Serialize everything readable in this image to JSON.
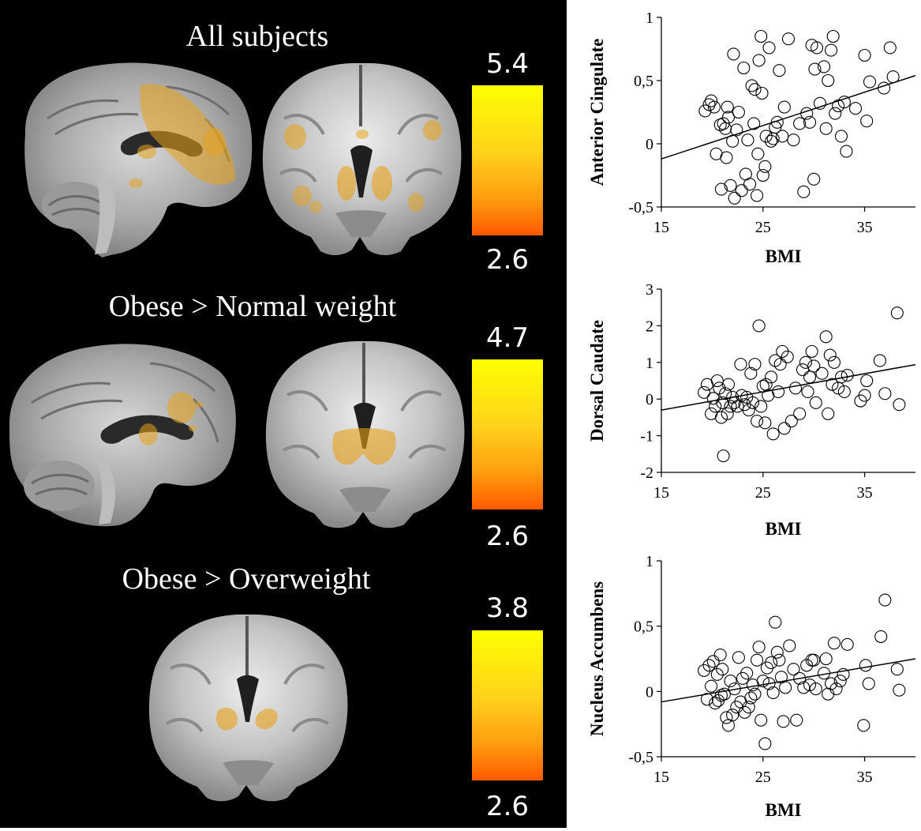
{
  "panels": [
    {
      "title": "All subjects",
      "cbar_max": "5.4",
      "cbar_min": "2.6"
    },
    {
      "title": "Obese > Normal weight",
      "cbar_max": "4.7",
      "cbar_min": "2.6"
    },
    {
      "title": "Obese > Overweight",
      "cbar_max": "3.8",
      "cbar_min": "2.6"
    }
  ],
  "colors": {
    "cbar_top": "#ffff00",
    "cbar_bottom": "#ff5a00",
    "activation": "#e8a21a"
  },
  "chart_data": [
    {
      "type": "scatter",
      "ylabel": "Anterior Cingulate",
      "xlabel": "BMI",
      "xlim": [
        15,
        40
      ],
      "ylim": [
        -0.5,
        1
      ],
      "xticks": [
        "15",
        "25",
        "35"
      ],
      "yticks": [
        "-0,5",
        "0",
        "0,5",
        "1"
      ],
      "yticks_values": [
        -0.5,
        0,
        0.5,
        1
      ],
      "fit_line": [
        [
          15,
          -0.12
        ],
        [
          40,
          0.54
        ]
      ],
      "points": [
        [
          19.3,
          0.26
        ],
        [
          19.7,
          0.31
        ],
        [
          19.9,
          0.34
        ],
        [
          20.2,
          0.29
        ],
        [
          20.4,
          -0.08
        ],
        [
          20.8,
          0.15
        ],
        [
          20.9,
          -0.36
        ],
        [
          21.1,
          0.16
        ],
        [
          21.3,
          0.12
        ],
        [
          21.4,
          -0.11
        ],
        [
          21.5,
          0.29
        ],
        [
          21.6,
          0.21
        ],
        [
          21.8,
          -0.33
        ],
        [
          22.0,
          0.02
        ],
        [
          22.1,
          0.71
        ],
        [
          22.2,
          -0.43
        ],
        [
          22.4,
          0.11
        ],
        [
          22.6,
          0.25
        ],
        [
          22.9,
          -0.37
        ],
        [
          23.1,
          0.6
        ],
        [
          23.3,
          -0.24
        ],
        [
          23.5,
          0.03
        ],
        [
          23.7,
          -0.32
        ],
        [
          23.9,
          0.46
        ],
        [
          24.1,
          0.16
        ],
        [
          24.2,
          0.43
        ],
        [
          24.4,
          -0.41
        ],
        [
          24.5,
          -0.08
        ],
        [
          24.6,
          0.66
        ],
        [
          24.8,
          0.85
        ],
        [
          24.9,
          0.4
        ],
        [
          25.0,
          -0.25
        ],
        [
          25.2,
          -0.18
        ],
        [
          25.3,
          0.06
        ],
        [
          25.6,
          0.76
        ],
        [
          25.8,
          0.02
        ],
        [
          26.0,
          0.04
        ],
        [
          26.2,
          0.13
        ],
        [
          26.4,
          0.17
        ],
        [
          26.6,
          0.58
        ],
        [
          26.9,
          0.06
        ],
        [
          27.1,
          0.29
        ],
        [
          27.5,
          0.83
        ],
        [
          28.0,
          0.03
        ],
        [
          28.6,
          0.16
        ],
        [
          29.0,
          -0.38
        ],
        [
          29.3,
          0.24
        ],
        [
          29.6,
          0.17
        ],
        [
          29.8,
          0.78
        ],
        [
          30.0,
          -0.28
        ],
        [
          30.1,
          0.59
        ],
        [
          30.3,
          0.76
        ],
        [
          30.6,
          0.32
        ],
        [
          31.0,
          0.61
        ],
        [
          31.2,
          0.12
        ],
        [
          31.4,
          0.5
        ],
        [
          31.7,
          0.74
        ],
        [
          31.9,
          0.85
        ],
        [
          32.1,
          0.24
        ],
        [
          32.4,
          0.3
        ],
        [
          32.7,
          0.06
        ],
        [
          33.0,
          0.33
        ],
        [
          33.2,
          -0.06
        ],
        [
          34.1,
          0.28
        ],
        [
          35.0,
          0.7
        ],
        [
          35.2,
          0.18
        ],
        [
          35.5,
          0.49
        ],
        [
          36.9,
          0.44
        ],
        [
          37.5,
          0.76
        ],
        [
          37.8,
          0.53
        ]
      ]
    },
    {
      "type": "scatter",
      "ylabel": "Dorsal Caudate",
      "xlabel": "BMI",
      "xlim": [
        15,
        40
      ],
      "ylim": [
        -2,
        3
      ],
      "xticks": [
        "15",
        "25",
        "35"
      ],
      "yticks": [
        "-2",
        "-1",
        "0",
        "1",
        "2",
        "3"
      ],
      "yticks_values": [
        -2,
        -1,
        0,
        1,
        2,
        3
      ],
      "fit_line": [
        [
          15,
          -0.3
        ],
        [
          40,
          0.94
        ]
      ],
      "points": [
        [
          19.2,
          0.18
        ],
        [
          19.5,
          0.4
        ],
        [
          19.9,
          -0.4
        ],
        [
          20.1,
          0.02
        ],
        [
          20.3,
          -0.2
        ],
        [
          20.5,
          0.5
        ],
        [
          20.7,
          0.3
        ],
        [
          20.9,
          -0.5
        ],
        [
          21.0,
          -0.1
        ],
        [
          21.1,
          -1.55
        ],
        [
          21.3,
          0.15
        ],
        [
          21.5,
          -0.4
        ],
        [
          21.6,
          0.4
        ],
        [
          21.8,
          -0.2
        ],
        [
          22.0,
          0.05
        ],
        [
          22.2,
          -0.1
        ],
        [
          22.5,
          -0.2
        ],
        [
          22.8,
          0.95
        ],
        [
          22.9,
          0.1
        ],
        [
          23.2,
          -0.15
        ],
        [
          23.4,
          0.05
        ],
        [
          23.6,
          -0.3
        ],
        [
          23.8,
          0.7
        ],
        [
          24.0,
          -0.1
        ],
        [
          24.2,
          0.95
        ],
        [
          24.4,
          -0.6
        ],
        [
          24.6,
          2.0
        ],
        [
          24.8,
          -0.2
        ],
        [
          25.0,
          0.35
        ],
        [
          25.2,
          -0.65
        ],
        [
          25.3,
          0.4
        ],
        [
          25.5,
          0.1
        ],
        [
          25.8,
          0.6
        ],
        [
          26.0,
          -0.95
        ],
        [
          26.2,
          1.05
        ],
        [
          26.5,
          0.2
        ],
        [
          26.7,
          0.95
        ],
        [
          26.9,
          1.3
        ],
        [
          27.1,
          -0.8
        ],
        [
          27.4,
          1.15
        ],
        [
          27.8,
          -0.6
        ],
        [
          28.2,
          0.3
        ],
        [
          28.6,
          -0.4
        ],
        [
          28.9,
          0.8
        ],
        [
          29.2,
          1.0
        ],
        [
          29.4,
          0.2
        ],
        [
          29.6,
          0.6
        ],
        [
          29.8,
          1.3
        ],
        [
          30.0,
          0.9
        ],
        [
          30.2,
          -0.1
        ],
        [
          30.8,
          0.7
        ],
        [
          31.2,
          1.7
        ],
        [
          31.4,
          -0.4
        ],
        [
          31.6,
          1.2
        ],
        [
          31.8,
          0.4
        ],
        [
          32.0,
          1.0
        ],
        [
          32.4,
          0.3
        ],
        [
          32.7,
          0.6
        ],
        [
          33.0,
          0.2
        ],
        [
          33.3,
          0.65
        ],
        [
          34.6,
          -0.05
        ],
        [
          35.0,
          0.1
        ],
        [
          35.2,
          0.5
        ],
        [
          36.5,
          1.05
        ],
        [
          37.0,
          0.15
        ],
        [
          38.2,
          2.35
        ],
        [
          38.4,
          -0.15
        ]
      ]
    },
    {
      "type": "scatter",
      "ylabel": "Nucleus Accumbens",
      "xlabel": "BMI",
      "xlim": [
        15,
        40
      ],
      "ylim": [
        -0.5,
        1
      ],
      "xticks": [
        "15",
        "25",
        "35"
      ],
      "yticks": [
        "-0,5",
        "0",
        "0,5",
        "1"
      ],
      "yticks_values": [
        -0.5,
        0,
        0.5,
        1
      ],
      "fit_line": [
        [
          15,
          -0.08
        ],
        [
          40,
          0.25
        ]
      ],
      "points": [
        [
          19.2,
          0.16
        ],
        [
          19.5,
          -0.06
        ],
        [
          19.7,
          0.2
        ],
        [
          19.9,
          0.04
        ],
        [
          20.1,
          0.23
        ],
        [
          20.3,
          -0.09
        ],
        [
          20.5,
          0.13
        ],
        [
          20.6,
          -0.07
        ],
        [
          20.8,
          0.28
        ],
        [
          20.9,
          -0.03
        ],
        [
          21.0,
          0.17
        ],
        [
          21.2,
          -0.02
        ],
        [
          21.4,
          -0.2
        ],
        [
          21.6,
          -0.26
        ],
        [
          21.8,
          0.08
        ],
        [
          22.0,
          -0.18
        ],
        [
          22.2,
          0.02
        ],
        [
          22.4,
          -0.12
        ],
        [
          22.6,
          0.26
        ],
        [
          22.8,
          -0.08
        ],
        [
          23.0,
          0.1
        ],
        [
          23.2,
          -0.16
        ],
        [
          23.4,
          0.14
        ],
        [
          23.6,
          -0.12
        ],
        [
          23.8,
          -0.05
        ],
        [
          24.0,
          0.05
        ],
        [
          24.2,
          -0.02
        ],
        [
          24.4,
          0.24
        ],
        [
          24.6,
          0.34
        ],
        [
          24.8,
          -0.22
        ],
        [
          25.0,
          0.08
        ],
        [
          25.2,
          -0.4
        ],
        [
          25.4,
          0.18
        ],
        [
          25.6,
          0.06
        ],
        [
          25.8,
          0.22
        ],
        [
          26.0,
          -0.01
        ],
        [
          26.2,
          0.53
        ],
        [
          26.4,
          0.3
        ],
        [
          26.6,
          0.24
        ],
        [
          26.8,
          0.11
        ],
        [
          27.0,
          -0.23
        ],
        [
          27.2,
          0.03
        ],
        [
          27.6,
          0.35
        ],
        [
          28.0,
          0.17
        ],
        [
          28.3,
          -0.22
        ],
        [
          28.6,
          0.1
        ],
        [
          29.0,
          0.03
        ],
        [
          29.3,
          0.2
        ],
        [
          29.6,
          0.05
        ],
        [
          29.8,
          0.24
        ],
        [
          30.0,
          0.24
        ],
        [
          30.2,
          0.02
        ],
        [
          31.0,
          0.14
        ],
        [
          31.2,
          0.25
        ],
        [
          31.4,
          -0.02
        ],
        [
          31.7,
          0.06
        ],
        [
          32.0,
          0.37
        ],
        [
          32.2,
          0.02
        ],
        [
          32.6,
          0.08
        ],
        [
          32.9,
          0.13
        ],
        [
          33.3,
          0.36
        ],
        [
          34.9,
          -0.26
        ],
        [
          35.1,
          0.2
        ],
        [
          35.4,
          0.06
        ],
        [
          36.6,
          0.42
        ],
        [
          37.0,
          0.7
        ],
        [
          38.2,
          0.17
        ],
        [
          38.4,
          0.01
        ]
      ]
    }
  ]
}
